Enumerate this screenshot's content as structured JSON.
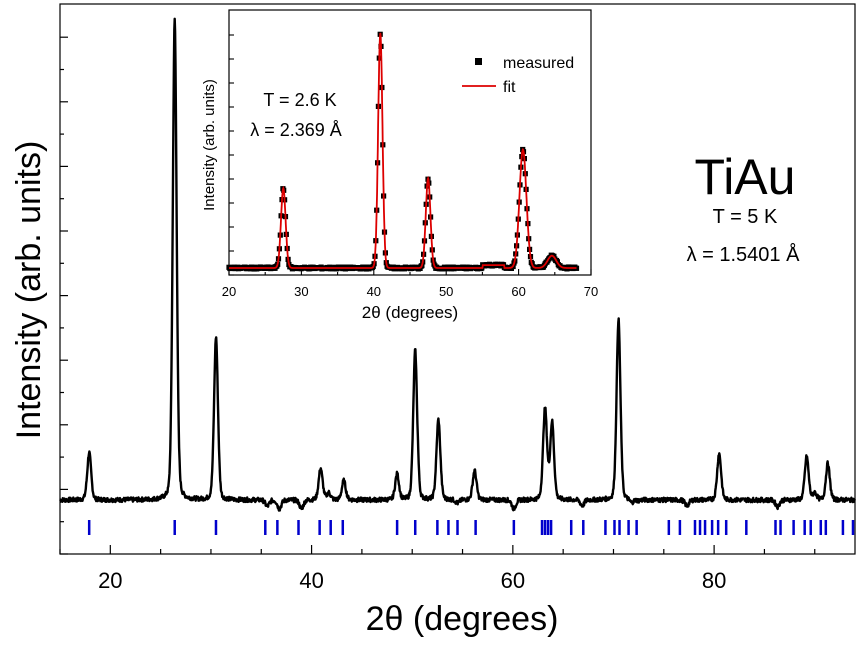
{
  "colors": {
    "main_line": "#000000",
    "ticks_marks": "#0000cc",
    "fit_line": "#dd0000",
    "measured_points": "#000000"
  },
  "annotations": {
    "compound": "TiAu",
    "main_temperature": "T = 5 K",
    "main_wavelength": "λ = 1.5401 Å",
    "inset_temperature": "T = 2.6 K",
    "inset_wavelength": "λ = 2.369 Å"
  },
  "chart_data": [
    {
      "type": "line",
      "xlabel": "2θ (degrees)",
      "ylabel": "Intensity (arb. units)",
      "xlim": [
        15,
        94
      ],
      "ylim": [
        0,
        100
      ],
      "xticks": [
        20,
        40,
        60,
        80
      ],
      "grid": false,
      "baseline": 3.0,
      "peaks": [
        {
          "x": 17.9,
          "y": 12.6
        },
        {
          "x": 26.4,
          "y": 100
        },
        {
          "x": 30.5,
          "y": 35.9
        },
        {
          "x": 35.6,
          "y": 1.7
        },
        {
          "x": 36.8,
          "y": 1.2
        },
        {
          "x": 39.0,
          "y": 1.2
        },
        {
          "x": 40.9,
          "y": 9.4
        },
        {
          "x": 41.7,
          "y": 4.4
        },
        {
          "x": 43.2,
          "y": 6.9
        },
        {
          "x": 48.5,
          "y": 8.2
        },
        {
          "x": 50.3,
          "y": 33.2
        },
        {
          "x": 52.6,
          "y": 19.2
        },
        {
          "x": 54.5,
          "y": 2.3
        },
        {
          "x": 56.2,
          "y": 8.9
        },
        {
          "x": 60.1,
          "y": 1.2
        },
        {
          "x": 63.2,
          "y": 21.3
        },
        {
          "x": 63.9,
          "y": 18.6
        },
        {
          "x": 66.9,
          "y": 1.8
        },
        {
          "x": 70.5,
          "y": 39.5
        },
        {
          "x": 71.8,
          "y": 2.3
        },
        {
          "x": 72.5,
          "y": 2.8
        },
        {
          "x": 77.3,
          "y": 1.8
        },
        {
          "x": 80.5,
          "y": 12.4
        },
        {
          "x": 86.3,
          "y": 1.6
        },
        {
          "x": 89.2,
          "y": 11.8
        },
        {
          "x": 90.0,
          "y": 4.4
        },
        {
          "x": 91.3,
          "y": 10.4
        }
      ],
      "bragg_positions": [
        17.9,
        26.4,
        30.5,
        35.4,
        36.6,
        38.7,
        40.8,
        41.9,
        43.1,
        48.5,
        50.3,
        52.5,
        53.6,
        54.5,
        56.3,
        60.1,
        62.9,
        63.2,
        63.5,
        63.8,
        65.8,
        67.0,
        69.2,
        70.1,
        70.6,
        71.5,
        72.3,
        75.5,
        76.6,
        78.1,
        78.6,
        79.1,
        79.8,
        80.4,
        81.2,
        83.2,
        86.1,
        86.6,
        87.9,
        89.0,
        89.6,
        90.6,
        91.1,
        92.8,
        93.8
      ]
    },
    {
      "type": "scatter",
      "xlabel": "2θ (degrees)",
      "ylabel": "Intensity (arb. units)",
      "xlim": [
        20,
        70
      ],
      "ylim": [
        0,
        100
      ],
      "xticks": [
        20,
        30,
        40,
        50,
        60,
        70
      ],
      "legend": {
        "placement": "top-right",
        "entries": [
          "measured",
          "fit"
        ]
      },
      "baseline": 2.2,
      "peaks": [
        {
          "x": 27.5,
          "y": 34.7,
          "w": 0.32
        },
        {
          "x": 40.9,
          "y": 98.0,
          "w": 0.3
        },
        {
          "x": 47.5,
          "y": 38.7,
          "w": 0.32
        },
        {
          "x": 60.6,
          "y": 50.5,
          "w": 0.48
        },
        {
          "x": 64.6,
          "y": 7.2,
          "w": 0.6
        }
      ],
      "series": [
        {
          "name": "measured",
          "style": "points"
        },
        {
          "name": "fit",
          "style": "line"
        }
      ]
    }
  ]
}
